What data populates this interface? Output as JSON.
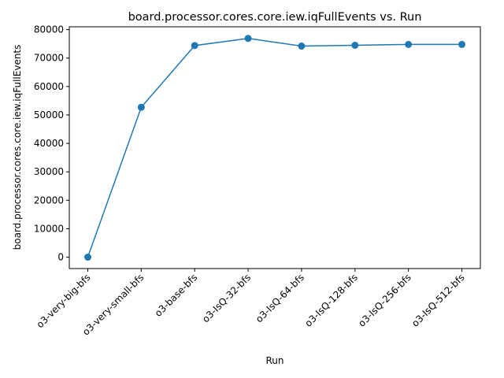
{
  "chart_data": {
    "type": "line",
    "title": "board.processor.cores.core.iew.iqFullEvents vs. Run",
    "xlabel": "Run",
    "ylabel": "board.processor.cores.core.iew.iqFullEvents",
    "categories": [
      "o3-very-big-bfs",
      "o3-very-small-bfs",
      "o3-base-bfs",
      "o3-IsQ-32-bfs",
      "o3-IsQ-64-bfs",
      "o3-IsQ-128-bfs",
      "o3-IsQ-256-bfs",
      "o3-IsQ-512-bfs"
    ],
    "values": [
      0,
      52700,
      74400,
      76900,
      74200,
      74500,
      74800,
      74800
    ],
    "ylim": [
      -4000,
      81000
    ],
    "yticks": [
      0,
      10000,
      20000,
      30000,
      40000,
      50000,
      60000,
      70000,
      80000
    ],
    "grid": false,
    "line_color": "#1f77b4",
    "marker": "circle"
  }
}
